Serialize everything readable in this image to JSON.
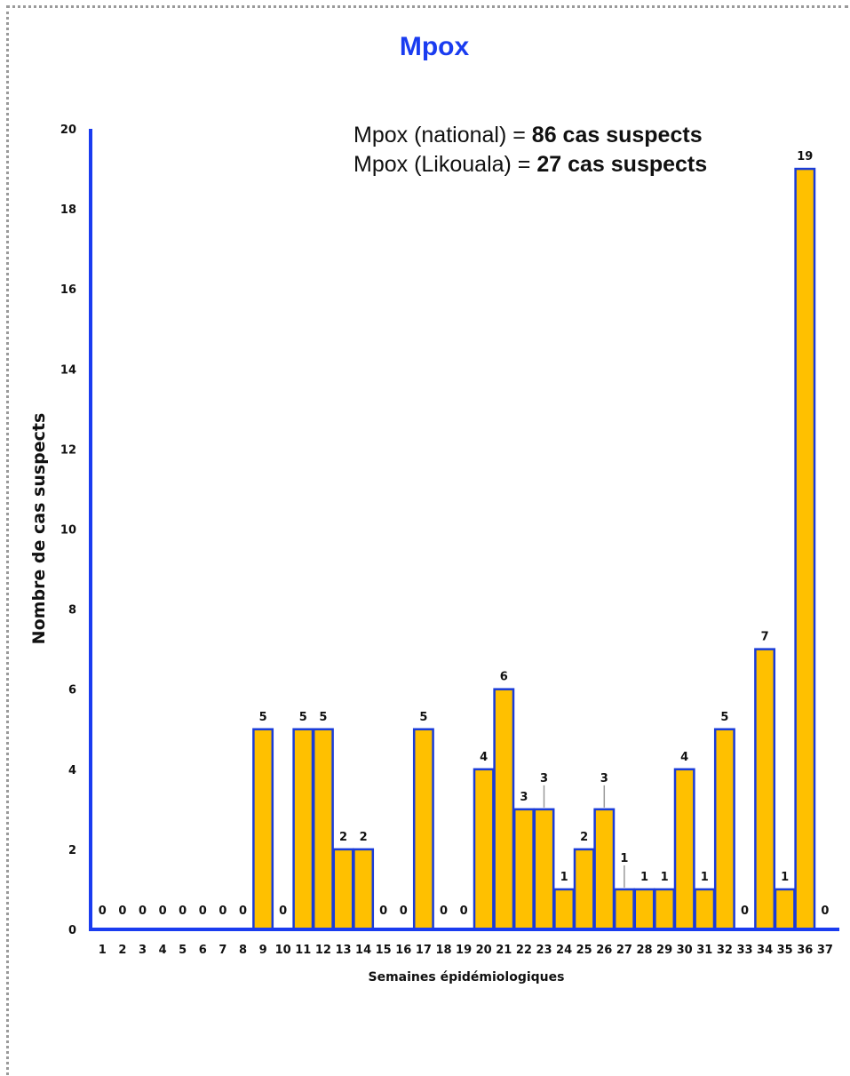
{
  "chart_data": {
    "type": "bar",
    "title": "Mpox",
    "xlabel": "Semaines épidémiologiques",
    "ylabel": "Nombre de cas suspects",
    "ylim": [
      0,
      20
    ],
    "yticks": [
      "0",
      "2",
      "4",
      "6",
      "8",
      "10",
      "12",
      "14",
      "16",
      "18",
      "20"
    ],
    "categories": [
      "1",
      "2",
      "3",
      "4",
      "5",
      "6",
      "7",
      "8",
      "9",
      "10",
      "11",
      "12",
      "13",
      "14",
      "15",
      "16",
      "17",
      "18",
      "19",
      "20",
      "21",
      "22",
      "23",
      "24",
      "25",
      "26",
      "27",
      "28",
      "29",
      "30",
      "31",
      "32",
      "33",
      "34",
      "35",
      "36",
      "37"
    ],
    "values": [
      0,
      0,
      0,
      0,
      0,
      0,
      0,
      0,
      5,
      0,
      5,
      5,
      2,
      2,
      0,
      0,
      5,
      0,
      0,
      4,
      6,
      3,
      3,
      1,
      2,
      3,
      1,
      1,
      1,
      4,
      1,
      5,
      0,
      7,
      1,
      19,
      0
    ],
    "annotations": {
      "line1_prefix": "Mpox (national) = ",
      "line1_value": "86 cas suspects",
      "line2_prefix": "Mpox (Likouala) = ",
      "line2_value": "27 cas suspects"
    },
    "colors": {
      "bar_fill": "#ffc000",
      "bar_stroke": "#1a3cd8",
      "axis": "#1a3cf0",
      "title": "#1a3cf0"
    },
    "grid": false,
    "legend": "none"
  }
}
